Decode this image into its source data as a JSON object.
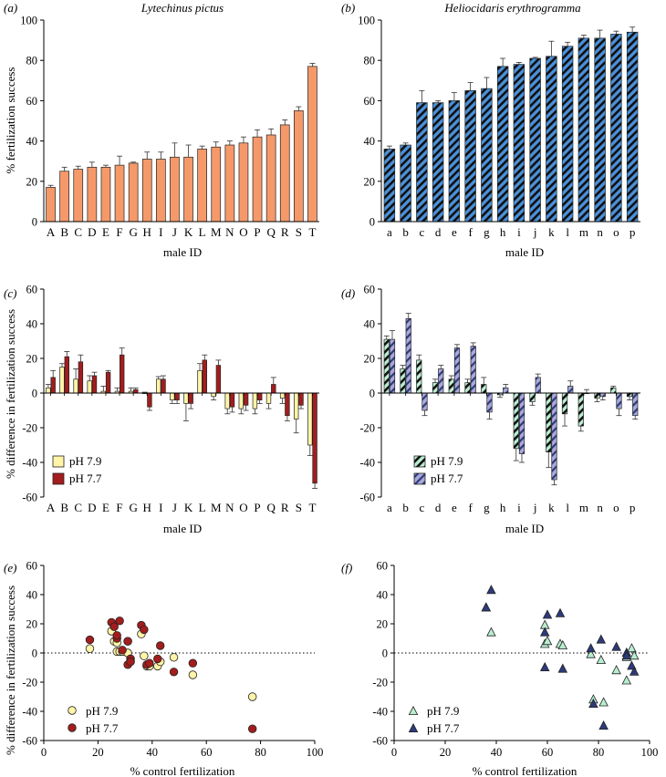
{
  "colors": {
    "orange": "#F5996A",
    "blue": "#4A90D9",
    "yellow": "#FFF4A8",
    "darkred": "#A31D1D",
    "green": "#B8EED0",
    "lavender": "#A9A9D9",
    "navy": "#2E3A7A",
    "hatch": "#101010"
  },
  "chart_data": [
    {
      "id": "a",
      "type": "bar",
      "panel_label": "(a)",
      "title": "Lytechinus pictus",
      "xlabel": "male ID",
      "ylabel": "% fertilization success",
      "ylim": [
        0,
        100
      ],
      "yticks": [
        0,
        20,
        40,
        60,
        80,
        100
      ],
      "categories": [
        "A",
        "B",
        "C",
        "D",
        "E",
        "F",
        "G",
        "H",
        "I",
        "J",
        "K",
        "L",
        "M",
        "N",
        "O",
        "P",
        "Q",
        "R",
        "S",
        "T"
      ],
      "values": [
        17,
        25,
        26,
        27,
        27,
        28,
        29,
        31,
        31,
        32,
        32,
        36,
        37,
        38,
        39,
        42,
        43,
        48,
        55,
        77
      ],
      "errors": [
        1,
        2,
        1.5,
        2.5,
        1,
        4.5,
        0.5,
        3.5,
        3.5,
        7,
        6,
        1.5,
        2.5,
        2,
        3,
        3.5,
        3,
        2.5,
        2,
        1.5
      ]
    },
    {
      "id": "b",
      "type": "bar",
      "panel_label": "(b)",
      "title": "Heliocidaris erythrogramma",
      "xlabel": "male ID",
      "ylabel": "",
      "ylim": [
        0,
        100
      ],
      "yticks": [
        0,
        20,
        40,
        60,
        80,
        100
      ],
      "categories": [
        "a",
        "b",
        "c",
        "d",
        "e",
        "f",
        "g",
        "h",
        "i",
        "j",
        "k",
        "l",
        "m",
        "n",
        "o",
        "p"
      ],
      "values": [
        36,
        38,
        59,
        59,
        60,
        65,
        66,
        77,
        78,
        81,
        82,
        87,
        91,
        91,
        93,
        94
      ],
      "errors": [
        1.5,
        1,
        6,
        1,
        4,
        4,
        5.5,
        4,
        1,
        0.5,
        7.5,
        2,
        1.5,
        4,
        1.5,
        2.5
      ]
    },
    {
      "id": "c",
      "type": "bar",
      "panel_label": "(c)",
      "xlabel": "male ID",
      "ylabel": "% difference in fertilization success",
      "ylim": [
        -60,
        60
      ],
      "yticks": [
        -60,
        -40,
        -20,
        0,
        20,
        40,
        60
      ],
      "categories": [
        "A",
        "B",
        "C",
        "D",
        "E",
        "F",
        "G",
        "H",
        "I",
        "J",
        "K",
        "L",
        "M",
        "N",
        "O",
        "P",
        "Q",
        "R",
        "S",
        "T"
      ],
      "series": [
        {
          "name": "pH 7.9",
          "values": [
            3,
            15,
            8,
            7,
            1,
            1,
            1,
            0,
            8,
            -4,
            -6,
            13,
            -2,
            -9,
            -9,
            -9,
            -6,
            -3,
            -15,
            -30
          ],
          "errors": [
            2,
            2,
            6,
            3,
            3,
            2,
            2,
            0.5,
            1.5,
            2,
            10,
            4,
            2,
            3,
            3,
            3,
            3,
            3,
            8,
            6
          ]
        },
        {
          "name": "pH 7.7",
          "values": [
            9,
            21,
            18,
            10,
            12,
            22,
            2,
            -8,
            8,
            -4,
            -6,
            19,
            16,
            -8,
            -7,
            -4,
            5,
            -13,
            -7,
            -52
          ],
          "errors": [
            4,
            3,
            4,
            2,
            1,
            4,
            1,
            2,
            2,
            2,
            3,
            3,
            3,
            3,
            3,
            2,
            4,
            3,
            2,
            3
          ]
        }
      ]
    },
    {
      "id": "d",
      "type": "bar",
      "panel_label": "(d)",
      "xlabel": "male ID",
      "ylabel": "",
      "ylim": [
        -60,
        60
      ],
      "yticks": [
        -60,
        -40,
        -20,
        0,
        20,
        40,
        60
      ],
      "categories": [
        "a",
        "b",
        "c",
        "d",
        "e",
        "f",
        "g",
        "h",
        "i",
        "j",
        "k",
        "l",
        "m",
        "n",
        "o",
        "p"
      ],
      "series": [
        {
          "name": "pH 7.9",
          "values": [
            31,
            14,
            19,
            6,
            8,
            6,
            5,
            -1,
            -32,
            -5,
            -34,
            -12,
            -19,
            -3,
            3,
            -2
          ],
          "errors": [
            2,
            2,
            3,
            2,
            2,
            2,
            4,
            1.5,
            7,
            2,
            9,
            7,
            3,
            2,
            1,
            2
          ]
        },
        {
          "name": "pH 7.7",
          "values": [
            31,
            43,
            -10,
            14,
            26,
            27,
            -11,
            3,
            -35,
            9,
            -50,
            4,
            0,
            -2,
            -9,
            -13
          ],
          "errors": [
            5,
            3,
            3,
            2,
            2,
            2,
            4,
            2,
            5,
            2,
            3,
            3,
            2,
            2,
            4,
            2
          ]
        }
      ]
    },
    {
      "id": "e",
      "type": "scatter",
      "panel_label": "(e)",
      "xlabel": "% control fertilization",
      "ylabel": "% difference in fertilization success",
      "xlim": [
        0,
        100
      ],
      "ylim": [
        -60,
        60
      ],
      "xticks": [
        0,
        20,
        40,
        60,
        80,
        100
      ],
      "yticks": [
        -60,
        -40,
        -20,
        0,
        20,
        40,
        60
      ],
      "series": [
        {
          "name": "pH 7.9",
          "points": [
            [
              17,
              3
            ],
            [
              25,
              15
            ],
            [
              26,
              8
            ],
            [
              27,
              7
            ],
            [
              27,
              1
            ],
            [
              28,
              1
            ],
            [
              29,
              1
            ],
            [
              31,
              0
            ],
            [
              31,
              8
            ],
            [
              32,
              -4
            ],
            [
              32,
              -6
            ],
            [
              36,
              13
            ],
            [
              37,
              -2
            ],
            [
              38,
              -9
            ],
            [
              39,
              -9
            ],
            [
              42,
              -9
            ],
            [
              43,
              -6
            ],
            [
              48,
              -3
            ],
            [
              55,
              -15
            ],
            [
              77,
              -30
            ]
          ]
        },
        {
          "name": "pH 7.7",
          "points": [
            [
              17,
              9
            ],
            [
              25,
              21
            ],
            [
              26,
              18
            ],
            [
              27,
              10
            ],
            [
              27,
              12
            ],
            [
              28,
              22
            ],
            [
              29,
              2
            ],
            [
              31,
              -8
            ],
            [
              31,
              8
            ],
            [
              32,
              -4
            ],
            [
              32,
              -6
            ],
            [
              36,
              19
            ],
            [
              37,
              16
            ],
            [
              38,
              -8
            ],
            [
              39,
              -7
            ],
            [
              42,
              -4
            ],
            [
              43,
              5
            ],
            [
              48,
              -13
            ],
            [
              55,
              -7
            ],
            [
              77,
              -52
            ]
          ]
        }
      ]
    },
    {
      "id": "f",
      "type": "scatter",
      "panel_label": "(f)",
      "xlabel": "% control fertilization",
      "ylabel": "",
      "xlim": [
        0,
        100
      ],
      "ylim": [
        -60,
        60
      ],
      "xticks": [
        0,
        20,
        40,
        60,
        80,
        100
      ],
      "yticks": [
        -60,
        -40,
        -20,
        0,
        20,
        40,
        60
      ],
      "series": [
        {
          "name": "pH 7.9",
          "points": [
            [
              36,
              31
            ],
            [
              38,
              14
            ],
            [
              59,
              19
            ],
            [
              59,
              6
            ],
            [
              60,
              8
            ],
            [
              65,
              6
            ],
            [
              66,
              5
            ],
            [
              77,
              -1
            ],
            [
              78,
              -32
            ],
            [
              81,
              -5
            ],
            [
              82,
              -34
            ],
            [
              87,
              -12
            ],
            [
              91,
              -19
            ],
            [
              91,
              -3
            ],
            [
              93,
              3
            ],
            [
              94,
              -2
            ]
          ]
        },
        {
          "name": "pH 7.7",
          "points": [
            [
              36,
              31
            ],
            [
              38,
              43
            ],
            [
              59,
              -10
            ],
            [
              59,
              14
            ],
            [
              60,
              26
            ],
            [
              65,
              27
            ],
            [
              66,
              -11
            ],
            [
              77,
              3
            ],
            [
              78,
              -35
            ],
            [
              81,
              9
            ],
            [
              82,
              -50
            ],
            [
              87,
              4
            ],
            [
              91,
              0
            ],
            [
              91,
              -2
            ],
            [
              93,
              -9
            ],
            [
              94,
              -13
            ]
          ]
        }
      ]
    }
  ]
}
